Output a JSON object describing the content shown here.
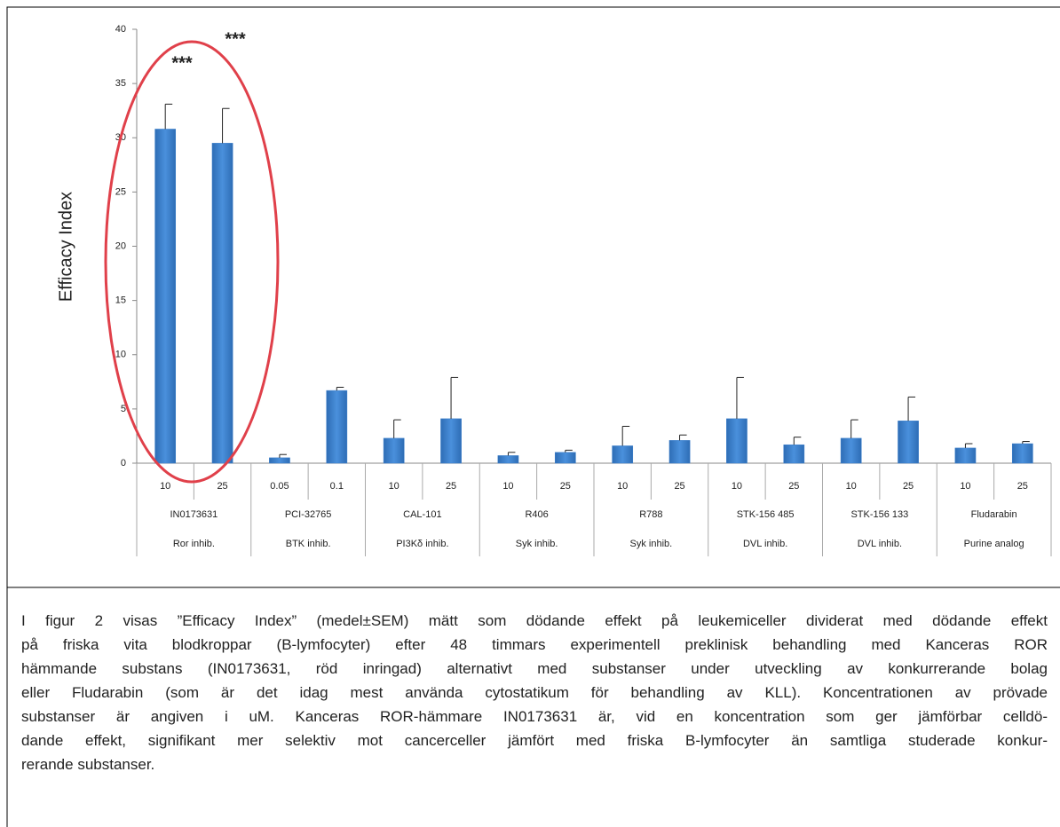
{
  "chart_data": {
    "type": "bar",
    "ylabel": "Efficacy Index",
    "ylim": [
      0,
      40
    ],
    "yticks": [
      0,
      5,
      10,
      15,
      20,
      25,
      30,
      35,
      40
    ],
    "color": "#3b7fcc",
    "categories": [
      "10",
      "25",
      "0.05",
      "0.1",
      "10",
      "25",
      "10",
      "25",
      "10",
      "25",
      "10",
      "25",
      "10",
      "25",
      "10",
      "25"
    ],
    "values": [
      30.8,
      29.5,
      0.5,
      6.7,
      2.3,
      4.1,
      0.7,
      1.0,
      1.6,
      2.1,
      4.1,
      1.7,
      2.3,
      3.9,
      1.4,
      1.8
    ],
    "errors": [
      2.3,
      3.2,
      0.3,
      0.3,
      1.7,
      3.8,
      0.3,
      0.2,
      1.8,
      0.5,
      3.8,
      0.7,
      1.7,
      2.2,
      0.4,
      0.2
    ],
    "groups": [
      {
        "name": "IN0173631",
        "class": "Ror inhib."
      },
      {
        "name": "PCI-32765",
        "class": "BTK inhib."
      },
      {
        "name": "CAL-101",
        "class": "PI3Kδ inhib."
      },
      {
        "name": "R406",
        "class": "Syk inhib."
      },
      {
        "name": "R788",
        "class": "Syk inhib."
      },
      {
        "name": "STK-156 485",
        "class": "DVL inhib."
      },
      {
        "name": "STK-156 133",
        "class": "DVL inhib."
      },
      {
        "name": "Fludarabin",
        "class": "Purine analog"
      }
    ],
    "annotations": [
      "***",
      "***"
    ]
  },
  "caption": [
    "I figur 2 visas ”Efficacy Index” (medel±SEM) mätt som dödande effekt på leukemiceller dividerat med dödande effekt",
    "på friska vita blodkroppar (B-lymfocyter) efter 48 timmars experimentell preklinisk behandling med Kanceras ROR",
    "hämmande substans (IN0173631, röd inringad) alternativt med substanser under utveckling av konkurrerande bolag",
    "eller Fludarabin (som är det idag mest använda cytostatikum för behandling av KLL). Koncentrationen av prövade",
    "substanser är angiven i uM. Kanceras ROR-hämmare IN0173631 är, vid en koncentration som ger jämförbar celldö-",
    "dande effekt, signifikant mer selektiv mot cancerceller jämfört med friska B-lymfocyter än samtliga studerade konkur-",
    "rerande substanser."
  ]
}
